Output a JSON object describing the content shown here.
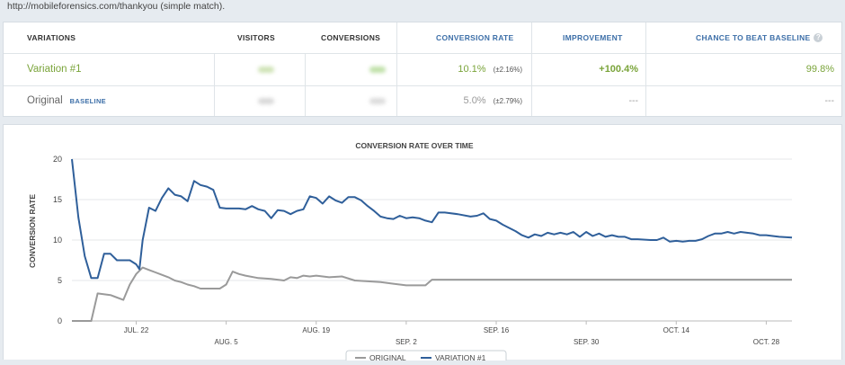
{
  "top_text": "http://mobileforensics.com/thankyou (simple match).",
  "table": {
    "headers": {
      "variations": "VARIATIONS",
      "visitors": "VISITORS",
      "conversions": "CONVERSIONS",
      "conversion_rate": "CONVERSION RATE",
      "improvement": "IMPROVEMENT",
      "chance": "CHANCE TO BEAT BASELINE"
    },
    "rows": [
      {
        "name": "Variation #1",
        "badge": "",
        "visitors_color": "#cfe3b6",
        "conversions_color": "#bfe0a8",
        "conversion_rate": "10.1%",
        "conversion_pm": "(±2.16%)",
        "improvement": "+100.4%",
        "chance": "99.8%"
      },
      {
        "name": "Original",
        "badge": "BASELINE",
        "visitors_color": "#d9d9d9",
        "conversions_color": "#dcdcdc",
        "conversion_rate": "5.0%",
        "conversion_pm": "(±2.79%)",
        "improvement": "---",
        "chance": "---"
      }
    ],
    "colors": {
      "accent_green": "#7aa43a",
      "accent_blue": "#3d6fa8"
    }
  },
  "chart_data": {
    "type": "line",
    "title": "CONVERSION RATE OVER TIME",
    "ylabel": "CONVERSION RATE",
    "xlabel": "",
    "ylim": [
      0,
      20
    ],
    "yticks": [
      0,
      5,
      10,
      15,
      20
    ],
    "xlim": [
      0,
      112
    ],
    "xticks_top": [
      {
        "label": "JUL. 22",
        "x": 10
      },
      {
        "label": "AUG. 19",
        "x": 38
      },
      {
        "label": "SEP. 16",
        "x": 66
      },
      {
        "label": "OCT. 14",
        "x": 94
      }
    ],
    "xticks_bottom": [
      {
        "label": "AUG. 5",
        "x": 24
      },
      {
        "label": "SEP. 2",
        "x": 52
      },
      {
        "label": "SEP. 30",
        "x": 80
      },
      {
        "label": "OCT. 28",
        "x": 108
      }
    ],
    "grid": true,
    "legend_position": "bottom-center",
    "series": [
      {
        "name": "ORIGINAL",
        "color": "#9a9a9a",
        "points": [
          [
            0,
            0
          ],
          [
            3,
            0
          ],
          [
            4,
            3.4
          ],
          [
            6,
            3.2
          ],
          [
            8,
            2.6
          ],
          [
            9,
            4.5
          ],
          [
            10,
            5.8
          ],
          [
            11,
            6.6
          ],
          [
            12,
            6.3
          ],
          [
            13,
            6.0
          ],
          [
            14,
            5.7
          ],
          [
            15,
            5.4
          ],
          [
            16,
            5.0
          ],
          [
            17,
            4.8
          ],
          [
            18,
            4.5
          ],
          [
            19,
            4.3
          ],
          [
            20,
            4.0
          ],
          [
            21,
            4.0
          ],
          [
            22,
            4.0
          ],
          [
            23,
            4.0
          ],
          [
            24,
            4.5
          ],
          [
            25,
            6.1
          ],
          [
            26,
            5.8
          ],
          [
            27,
            5.6
          ],
          [
            29,
            5.3
          ],
          [
            31,
            5.2
          ],
          [
            33,
            5.0
          ],
          [
            34,
            5.4
          ],
          [
            35,
            5.3
          ],
          [
            36,
            5.6
          ],
          [
            37,
            5.5
          ],
          [
            38,
            5.6
          ],
          [
            40,
            5.4
          ],
          [
            42,
            5.5
          ],
          [
            44,
            5.0
          ],
          [
            46,
            4.9
          ],
          [
            48,
            4.8
          ],
          [
            50,
            4.6
          ],
          [
            52,
            4.4
          ],
          [
            54,
            4.4
          ],
          [
            55,
            4.4
          ],
          [
            56,
            5.1
          ],
          [
            70,
            5.1
          ],
          [
            90,
            5.1
          ],
          [
            112,
            5.1
          ]
        ]
      },
      {
        "name": "VARIATION #1",
        "color": "#2f5f9a",
        "points": [
          [
            0,
            20
          ],
          [
            1,
            12.8
          ],
          [
            2,
            8.0
          ],
          [
            3,
            5.3
          ],
          [
            4,
            5.3
          ],
          [
            5,
            8.3
          ],
          [
            6,
            8.3
          ],
          [
            7,
            7.5
          ],
          [
            8,
            7.5
          ],
          [
            9,
            7.5
          ],
          [
            10,
            7.0
          ],
          [
            10.5,
            6.4
          ],
          [
            11,
            10
          ],
          [
            12,
            14
          ],
          [
            13,
            13.6
          ],
          [
            14,
            15.2
          ],
          [
            15,
            16.4
          ],
          [
            16,
            15.6
          ],
          [
            17,
            15.4
          ],
          [
            18,
            14.8
          ],
          [
            19,
            17.3
          ],
          [
            20,
            16.8
          ],
          [
            21,
            16.6
          ],
          [
            22,
            16.2
          ],
          [
            23,
            14.0
          ],
          [
            24,
            13.9
          ],
          [
            26,
            13.9
          ],
          [
            27,
            13.8
          ],
          [
            28,
            14.2
          ],
          [
            29,
            13.8
          ],
          [
            30,
            13.6
          ],
          [
            31,
            12.7
          ],
          [
            32,
            13.7
          ],
          [
            33,
            13.6
          ],
          [
            34,
            13.2
          ],
          [
            35,
            13.6
          ],
          [
            36,
            13.8
          ],
          [
            37,
            15.4
          ],
          [
            38,
            15.2
          ],
          [
            39,
            14.5
          ],
          [
            40,
            15.4
          ],
          [
            41,
            14.9
          ],
          [
            42,
            14.6
          ],
          [
            43,
            15.3
          ],
          [
            44,
            15.3
          ],
          [
            45,
            14.9
          ],
          [
            46,
            14.2
          ],
          [
            47,
            13.6
          ],
          [
            48,
            12.9
          ],
          [
            49,
            12.7
          ],
          [
            50,
            12.6
          ],
          [
            51,
            13.0
          ],
          [
            52,
            12.7
          ],
          [
            53,
            12.8
          ],
          [
            54,
            12.7
          ],
          [
            55,
            12.4
          ],
          [
            56,
            12.2
          ],
          [
            57,
            13.4
          ],
          [
            58,
            13.4
          ],
          [
            60,
            13.2
          ],
          [
            62,
            12.9
          ],
          [
            63,
            13.0
          ],
          [
            64,
            13.3
          ],
          [
            65,
            12.6
          ],
          [
            66,
            12.4
          ],
          [
            67,
            11.9
          ],
          [
            68,
            11.5
          ],
          [
            69,
            11.1
          ],
          [
            70,
            10.6
          ],
          [
            71,
            10.3
          ],
          [
            72,
            10.7
          ],
          [
            73,
            10.5
          ],
          [
            74,
            10.9
          ],
          [
            75,
            10.7
          ],
          [
            76,
            10.9
          ],
          [
            77,
            10.7
          ],
          [
            78,
            11.0
          ],
          [
            79,
            10.4
          ],
          [
            80,
            11.0
          ],
          [
            81,
            10.5
          ],
          [
            82,
            10.8
          ],
          [
            83,
            10.4
          ],
          [
            84,
            10.6
          ],
          [
            85,
            10.4
          ],
          [
            86,
            10.4
          ],
          [
            87,
            10.1
          ],
          [
            88,
            10.1
          ],
          [
            90,
            10.0
          ],
          [
            91,
            10.0
          ],
          [
            92,
            10.3
          ],
          [
            93,
            9.8
          ],
          [
            94,
            9.9
          ],
          [
            95,
            9.8
          ],
          [
            96,
            9.9
          ],
          [
            97,
            9.9
          ],
          [
            98,
            10.1
          ],
          [
            99,
            10.5
          ],
          [
            100,
            10.8
          ],
          [
            101,
            10.8
          ],
          [
            102,
            11.0
          ],
          [
            103,
            10.8
          ],
          [
            104,
            11.0
          ],
          [
            105,
            10.9
          ],
          [
            106,
            10.8
          ],
          [
            107,
            10.6
          ],
          [
            108,
            10.6
          ],
          [
            109,
            10.5
          ],
          [
            110,
            10.4
          ],
          [
            112,
            10.3
          ]
        ]
      }
    ]
  },
  "legend": {
    "original": "ORIGINAL",
    "variation": "VARIATION #1"
  }
}
